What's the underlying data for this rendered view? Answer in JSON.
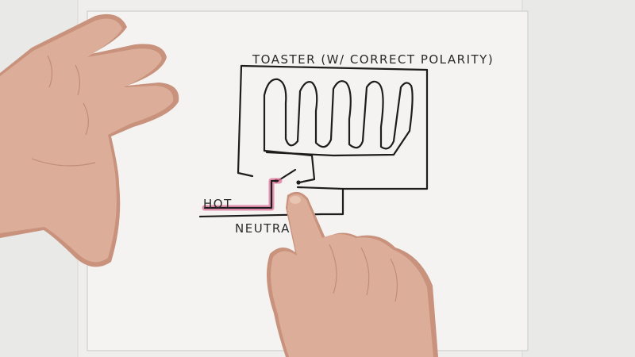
{
  "diagram": {
    "title": "TOASTER (W/ CORRECT POLARITY)",
    "hot_label": "HOT",
    "neutral_label": "NEUTRA"
  },
  "colors": {
    "paper": "#f4f3f1",
    "background": "#e9e9e7",
    "ink": "#1d1d1d",
    "hot_highlight": "#e0709a",
    "skin": "#dcad98"
  },
  "icons": {
    "left_hand": "left-hand-photo",
    "right_hand": "pointing-hand-photo"
  }
}
